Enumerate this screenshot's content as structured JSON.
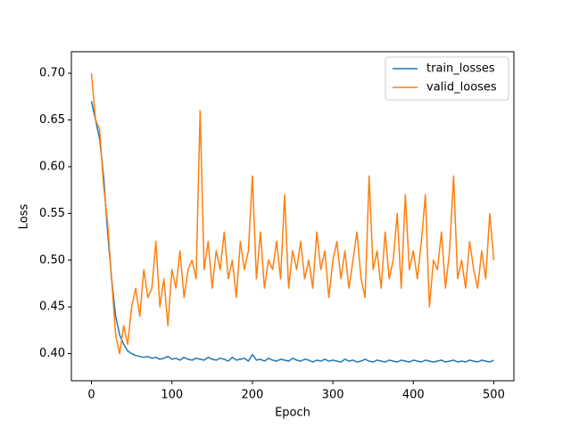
{
  "chart_data": {
    "type": "line",
    "x_label": "Epoch",
    "y_label": "Loss",
    "x": [
      0,
      5,
      10,
      15,
      20,
      25,
      30,
      35,
      40,
      45,
      50,
      55,
      60,
      65,
      70,
      75,
      80,
      85,
      90,
      95,
      100,
      105,
      110,
      115,
      120,
      125,
      130,
      135,
      140,
      145,
      150,
      155,
      160,
      165,
      170,
      175,
      180,
      185,
      190,
      195,
      200,
      205,
      210,
      215,
      220,
      225,
      230,
      235,
      240,
      245,
      250,
      255,
      260,
      265,
      270,
      275,
      280,
      285,
      290,
      295,
      300,
      305,
      310,
      315,
      320,
      325,
      330,
      335,
      340,
      345,
      350,
      355,
      360,
      365,
      370,
      375,
      380,
      385,
      390,
      395,
      400,
      405,
      410,
      415,
      420,
      425,
      430,
      435,
      440,
      445,
      450,
      455,
      460,
      465,
      470,
      475,
      480,
      485,
      490,
      495,
      500
    ],
    "series": [
      {
        "name": "train_losses",
        "color": "#1f77b4",
        "values": [
          0.67,
          0.65,
          0.63,
          0.59,
          0.53,
          0.48,
          0.44,
          0.42,
          0.41,
          0.403,
          0.4,
          0.398,
          0.397,
          0.396,
          0.397,
          0.395,
          0.396,
          0.394,
          0.395,
          0.397,
          0.394,
          0.395,
          0.393,
          0.396,
          0.394,
          0.393,
          0.395,
          0.394,
          0.393,
          0.396,
          0.394,
          0.393,
          0.395,
          0.394,
          0.392,
          0.396,
          0.393,
          0.394,
          0.395,
          0.392,
          0.399,
          0.393,
          0.394,
          0.392,
          0.395,
          0.393,
          0.392,
          0.394,
          0.393,
          0.392,
          0.395,
          0.393,
          0.392,
          0.394,
          0.393,
          0.391,
          0.393,
          0.392,
          0.394,
          0.392,
          0.393,
          0.392,
          0.391,
          0.394,
          0.392,
          0.393,
          0.391,
          0.392,
          0.394,
          0.392,
          0.391,
          0.393,
          0.392,
          0.391,
          0.393,
          0.392,
          0.391,
          0.393,
          0.392,
          0.391,
          0.393,
          0.392,
          0.391,
          0.393,
          0.392,
          0.391,
          0.392,
          0.393,
          0.391,
          0.392,
          0.393,
          0.391,
          0.392,
          0.391,
          0.393,
          0.392,
          0.391,
          0.393,
          0.392,
          0.391,
          0.393
        ]
      },
      {
        "name": "valid_looses",
        "color": "#ff7f0e",
        "values": [
          0.7,
          0.65,
          0.64,
          0.58,
          0.54,
          0.48,
          0.42,
          0.4,
          0.43,
          0.41,
          0.45,
          0.47,
          0.44,
          0.49,
          0.46,
          0.47,
          0.52,
          0.45,
          0.48,
          0.43,
          0.49,
          0.47,
          0.51,
          0.46,
          0.49,
          0.5,
          0.48,
          0.66,
          0.49,
          0.52,
          0.47,
          0.51,
          0.49,
          0.53,
          0.48,
          0.5,
          0.46,
          0.52,
          0.49,
          0.51,
          0.59,
          0.48,
          0.53,
          0.47,
          0.5,
          0.49,
          0.52,
          0.48,
          0.57,
          0.47,
          0.51,
          0.49,
          0.52,
          0.48,
          0.5,
          0.47,
          0.53,
          0.49,
          0.51,
          0.46,
          0.5,
          0.52,
          0.48,
          0.51,
          0.47,
          0.5,
          0.53,
          0.48,
          0.46,
          0.59,
          0.49,
          0.51,
          0.47,
          0.53,
          0.48,
          0.5,
          0.55,
          0.47,
          0.57,
          0.49,
          0.51,
          0.48,
          0.52,
          0.57,
          0.45,
          0.5,
          0.49,
          0.53,
          0.47,
          0.51,
          0.59,
          0.48,
          0.5,
          0.47,
          0.52,
          0.49,
          0.47,
          0.51,
          0.48,
          0.55,
          0.5
        ]
      }
    ],
    "xlim": [
      -25,
      525
    ],
    "xticks": [
      0,
      100,
      200,
      300,
      400,
      500
    ],
    "ylim": [
      0.371,
      0.723
    ],
    "yticks": [
      {
        "value": 0.4,
        "label": "0.40"
      },
      0.45,
      {
        "value": 0.5,
        "label": "0.50"
      },
      0.55,
      {
        "value": 0.6,
        "label": "0.60"
      },
      0.65,
      {
        "value": 0.7,
        "label": "0.70"
      }
    ],
    "grid": false,
    "legend": "upper-right"
  }
}
